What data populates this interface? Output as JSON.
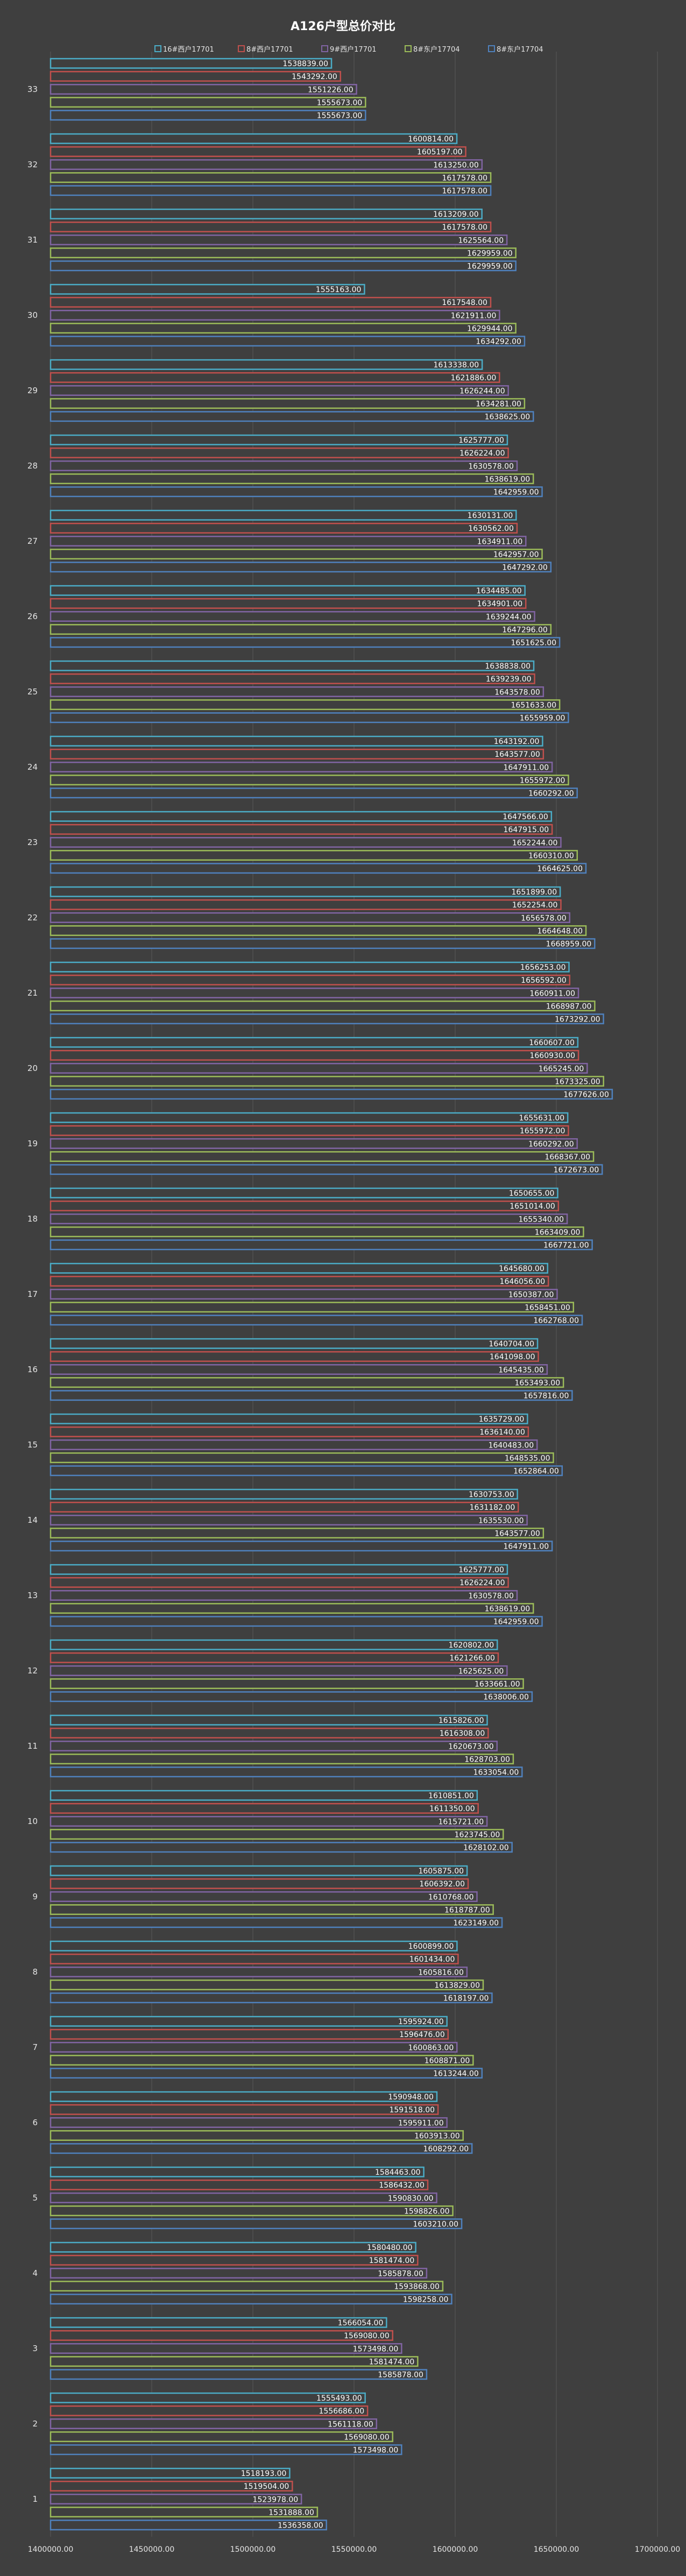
{
  "chart_data": {
    "type": "bar",
    "orientation": "horizontal",
    "title": "A126户型总价对比",
    "xlabel": "",
    "ylabel": "",
    "xlim": [
      1400000,
      1700000
    ],
    "x_ticks": [
      "1400000.00",
      "1450000.00",
      "1500000.00",
      "1550000.00",
      "1600000.00",
      "1650000.00",
      "1700000.00"
    ],
    "grid": true,
    "legend_position": "top",
    "categories": [
      "1",
      "2",
      "3",
      "4",
      "5",
      "6",
      "7",
      "8",
      "9",
      "10",
      "11",
      "12",
      "13",
      "14",
      "15",
      "16",
      "17",
      "18",
      "19",
      "20",
      "21",
      "22",
      "23",
      "24",
      "25",
      "26",
      "27",
      "28",
      "29",
      "30",
      "31",
      "32",
      "33"
    ],
    "series": [
      {
        "name": "16#西户17701",
        "color": "#4bacc6",
        "values": [
          1518193,
          1555493,
          1566054,
          1580480,
          1584463,
          1590948,
          1595924,
          1600899,
          1605875,
          1610851,
          1615826,
          1620802,
          1625777,
          1630753,
          1635729,
          1640704,
          1645680,
          1650655,
          1655631,
          1660607,
          1656253,
          1651899,
          1647566,
          1643192,
          1638838,
          1634485,
          1630131,
          1625777,
          1613338,
          1555163,
          1613209,
          1600814,
          1538839
        ]
      },
      {
        "name": "8#西户17701",
        "color": "#c0504d",
        "values": [
          1519504,
          1556686,
          1569080,
          1581474,
          1586432,
          1591518,
          1596476,
          1601434,
          1606392,
          1611350,
          1616308,
          1621266,
          1626224,
          1631182,
          1636140,
          1641098,
          1646056,
          1651014,
          1655972,
          1660930,
          1656592,
          1652254,
          1647915,
          1643577,
          1639239,
          1634901,
          1630562,
          1626224,
          1621886,
          1617548,
          1617578,
          1605197,
          1543292
        ]
      },
      {
        "name": "9#西户17701",
        "color": "#8064a2",
        "values": [
          1523978,
          1561118,
          1573498,
          1585878,
          1590830,
          1595911,
          1600863,
          1605816,
          1610768,
          1615721,
          1620673,
          1625625,
          1630578,
          1635530,
          1640483,
          1645435,
          1650387,
          1655340,
          1660292,
          1665245,
          1660911,
          1656578,
          1652244,
          1647911,
          1643578,
          1639244,
          1634911,
          1630578,
          1626244,
          1621911,
          1625564,
          1613250,
          1551226
        ]
      },
      {
        "name": "8#东户17704",
        "color": "#9bbb59",
        "values": [
          1531888,
          1569080,
          1581474,
          1593868,
          1598826,
          1603913,
          1608871,
          1613829,
          1618787,
          1623745,
          1628703,
          1633661,
          1638619,
          1643577,
          1648535,
          1653493,
          1658451,
          1663409,
          1668367,
          1673325,
          1668987,
          1664648,
          1660310,
          1655972,
          1651633,
          1647296,
          1642957,
          1638619,
          1634281,
          1629944,
          1629959,
          1617578,
          1555673
        ]
      },
      {
        "name": "8#东户17704",
        "color": "#4f81bd",
        "values": [
          1536358,
          1573498,
          1585878,
          1598258,
          1603210,
          1608292,
          1613244,
          1618197,
          1623149,
          1628102,
          1633054,
          1638006,
          1642959,
          1647911,
          1652864,
          1657816,
          1662768,
          1667721,
          1672673,
          1677626,
          1673292,
          1668959,
          1664625,
          1660292,
          1655959,
          1651625,
          1647292,
          1642959,
          1638625,
          1634292,
          1629959,
          1617578,
          1555673
        ]
      }
    ]
  }
}
